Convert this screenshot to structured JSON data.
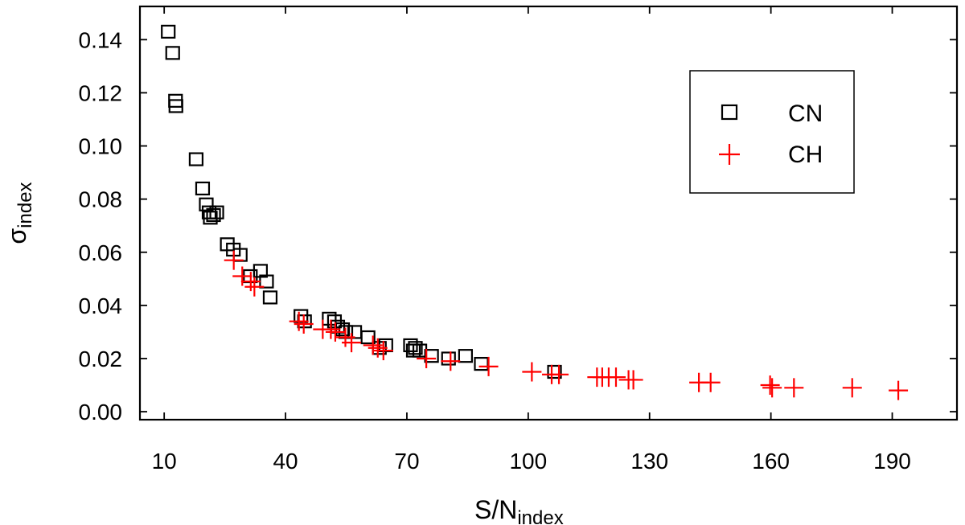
{
  "chart_data": {
    "type": "scatter",
    "xlabel": {
      "main": "S/N",
      "sub": "index"
    },
    "ylabel": {
      "main": "σ",
      "sub": "index"
    },
    "xlim": [
      4,
      206
    ],
    "ylim": [
      -0.003,
      0.1525
    ],
    "xticks": [
      10,
      40,
      70,
      100,
      130,
      160,
      190
    ],
    "yticks": [
      0.0,
      0.02,
      0.04,
      0.06,
      0.08,
      0.1,
      0.12,
      0.14
    ],
    "ytick_labels": [
      "0.00",
      "0.02",
      "0.04",
      "0.06",
      "0.08",
      "0.10",
      "0.12",
      "0.14"
    ],
    "legend": {
      "position": "top-right"
    },
    "series": [
      {
        "name": "CN",
        "marker": "open-square",
        "color": "#000000",
        "points": [
          [
            11.0,
            0.143
          ],
          [
            12.1,
            0.135
          ],
          [
            12.8,
            0.117
          ],
          [
            12.9,
            0.115
          ],
          [
            17.9,
            0.095
          ],
          [
            19.5,
            0.084
          ],
          [
            20.4,
            0.078
          ],
          [
            21.1,
            0.075
          ],
          [
            21.4,
            0.073
          ],
          [
            22.2,
            0.074
          ],
          [
            23.0,
            0.075
          ],
          [
            25.6,
            0.063
          ],
          [
            27.1,
            0.061
          ],
          [
            28.8,
            0.059
          ],
          [
            31.3,
            0.051
          ],
          [
            33.8,
            0.053
          ],
          [
            35.3,
            0.049
          ],
          [
            36.2,
            0.043
          ],
          [
            43.8,
            0.036
          ],
          [
            44.7,
            0.034
          ],
          [
            50.8,
            0.035
          ],
          [
            52.1,
            0.034
          ],
          [
            52.9,
            0.032
          ],
          [
            54.1,
            0.031
          ],
          [
            54.9,
            0.03
          ],
          [
            57.1,
            0.03
          ],
          [
            60.4,
            0.028
          ],
          [
            63.2,
            0.024
          ],
          [
            64.8,
            0.025
          ],
          [
            70.9,
            0.025
          ],
          [
            72.1,
            0.024
          ],
          [
            73.2,
            0.023
          ],
          [
            71.6,
            0.023
          ],
          [
            76.1,
            0.021
          ],
          [
            80.3,
            0.02
          ],
          [
            84.5,
            0.021
          ],
          [
            88.4,
            0.018
          ],
          [
            106.5,
            0.015
          ]
        ]
      },
      {
        "name": "CH",
        "marker": "plus",
        "color": "#ff0000",
        "points": [
          [
            27.2,
            0.057
          ],
          [
            29.3,
            0.051
          ],
          [
            31.4,
            0.049
          ],
          [
            32.3,
            0.047
          ],
          [
            43.3,
            0.034
          ],
          [
            44.5,
            0.033
          ],
          [
            49.2,
            0.031
          ],
          [
            51.2,
            0.031
          ],
          [
            52.3,
            0.03
          ],
          [
            54.8,
            0.028
          ],
          [
            56.3,
            0.026
          ],
          [
            61.6,
            0.025
          ],
          [
            62.8,
            0.024
          ],
          [
            64.2,
            0.023
          ],
          [
            74.8,
            0.02
          ],
          [
            80.8,
            0.019
          ],
          [
            90.2,
            0.017
          ],
          [
            100.9,
            0.015
          ],
          [
            105.8,
            0.014
          ],
          [
            107.6,
            0.014
          ],
          [
            117.0,
            0.013
          ],
          [
            118.3,
            0.013
          ],
          [
            119.9,
            0.013
          ],
          [
            121.7,
            0.013
          ],
          [
            124.8,
            0.012
          ],
          [
            126.0,
            0.012
          ],
          [
            142.2,
            0.011
          ],
          [
            145.1,
            0.011
          ],
          [
            159.8,
            0.01
          ],
          [
            160.3,
            0.009
          ],
          [
            165.7,
            0.009
          ],
          [
            180.1,
            0.009
          ],
          [
            191.5,
            0.008
          ]
        ]
      }
    ]
  }
}
